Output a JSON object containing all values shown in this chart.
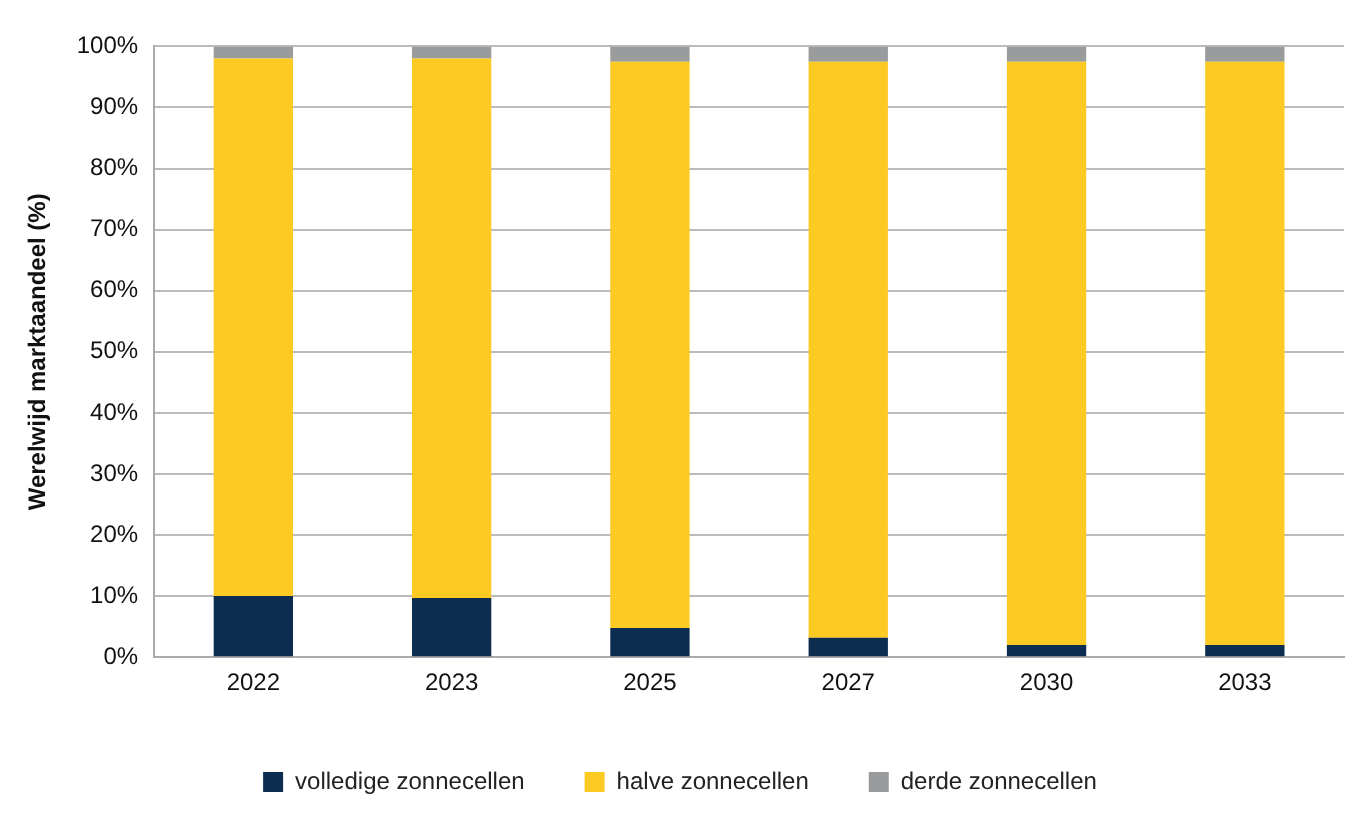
{
  "chart_data": {
    "type": "bar",
    "stacked": true,
    "ylabel": "Werelwijd marktaandeel (%)",
    "categories": [
      "2022",
      "2023",
      "2025",
      "2027",
      "2030",
      "2033"
    ],
    "series": [
      {
        "name": "volledige zonnecellen",
        "color": "#0c2d4f",
        "values": [
          10,
          9.7,
          4.8,
          3.2,
          2,
          2
        ]
      },
      {
        "name": "halve zonnecellen",
        "color": "#fdc923",
        "values": [
          88,
          88.3,
          92.7,
          94.3,
          95.5,
          95.5
        ]
      },
      {
        "name": "derde zonnecellen",
        "color": "#9a9b9d",
        "values": [
          2,
          2,
          2.5,
          2.5,
          2.5,
          2.5
        ]
      }
    ],
    "ylim": [
      0,
      100
    ],
    "yticks": [
      {
        "value": 0,
        "label": "0%"
      },
      {
        "value": 10,
        "label": "10%"
      },
      {
        "value": 20,
        "label": "20%"
      },
      {
        "value": 30,
        "label": "30%"
      },
      {
        "value": 40,
        "label": "40%"
      },
      {
        "value": 50,
        "label": "50%"
      },
      {
        "value": 60,
        "label": "60%"
      },
      {
        "value": 70,
        "label": "70%"
      },
      {
        "value": 80,
        "label": "80%"
      },
      {
        "value": 90,
        "label": "90%"
      },
      {
        "value": 100,
        "label": "100%"
      }
    ],
    "grid": "y",
    "legend": "bottom"
  }
}
